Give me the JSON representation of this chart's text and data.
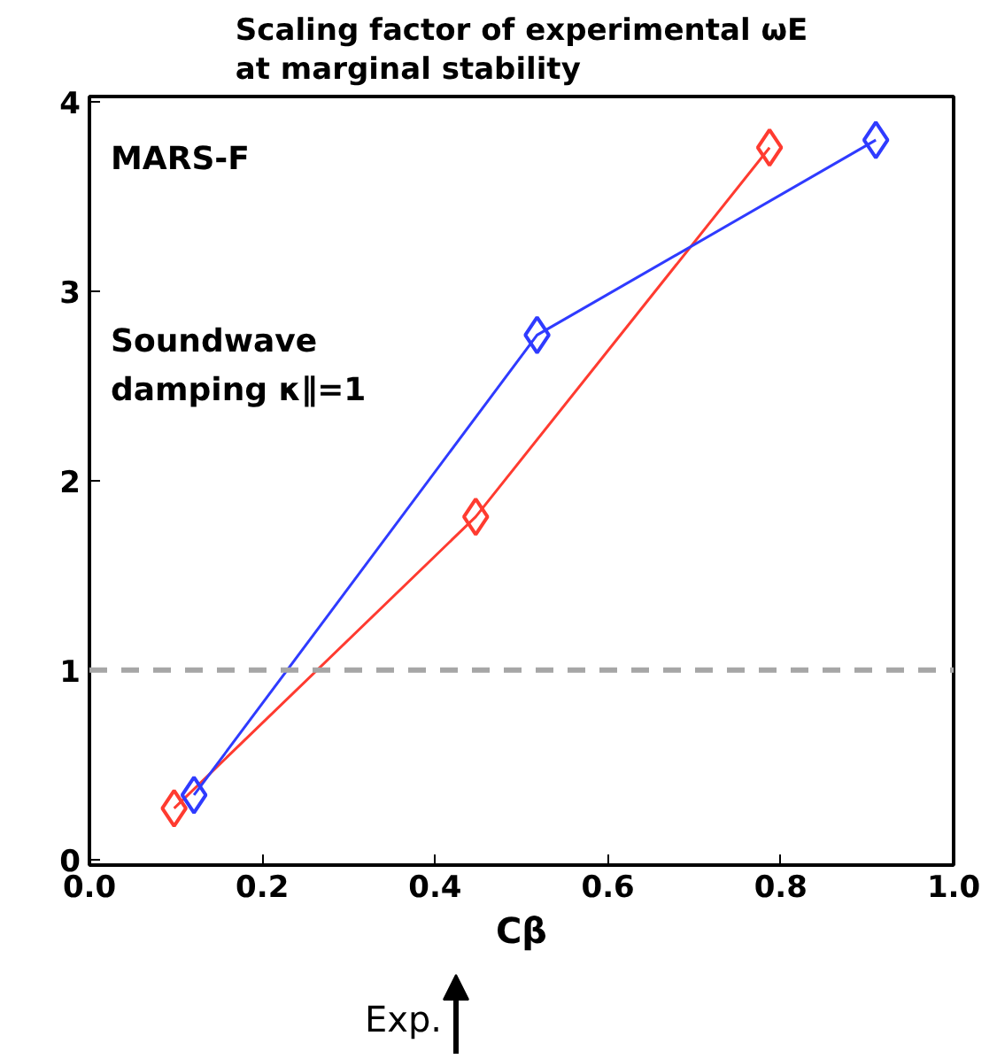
{
  "chart_data": {
    "type": "line",
    "title": "Scaling factor of experimental ωE\nat marginal stability",
    "xlabel": "Cβ",
    "x": [
      0.098,
      0.447,
      0.787
    ],
    "series": [
      {
        "color": "#ff3b30",
        "values": [
          0.27,
          1.81,
          3.76
        ]
      },
      {
        "color": "#2f3bff",
        "x": [
          0.121,
          0.518,
          0.91
        ],
        "values": [
          0.34,
          2.77,
          3.8
        ]
      }
    ],
    "xlim": [
      0,
      1
    ],
    "ylim": [
      -0.03,
      4.03
    ],
    "xticks": [
      {
        "value": 0,
        "label": "0.0"
      },
      0.2,
      0.4,
      0.6,
      0.8,
      {
        "value": 1,
        "label": "1.0"
      }
    ],
    "yticks": [
      0,
      1,
      2,
      3,
      4
    ],
    "marker": "diamond",
    "line_style": "solid",
    "grid": false,
    "ref_lines": [
      {
        "axis": "y",
        "value": 1,
        "color": "#a6a6a6",
        "line_style": "dashed"
      }
    ],
    "annotations": [
      "MARS-F",
      "Soundwave\ndamping κ∥=1",
      "Exp."
    ]
  }
}
